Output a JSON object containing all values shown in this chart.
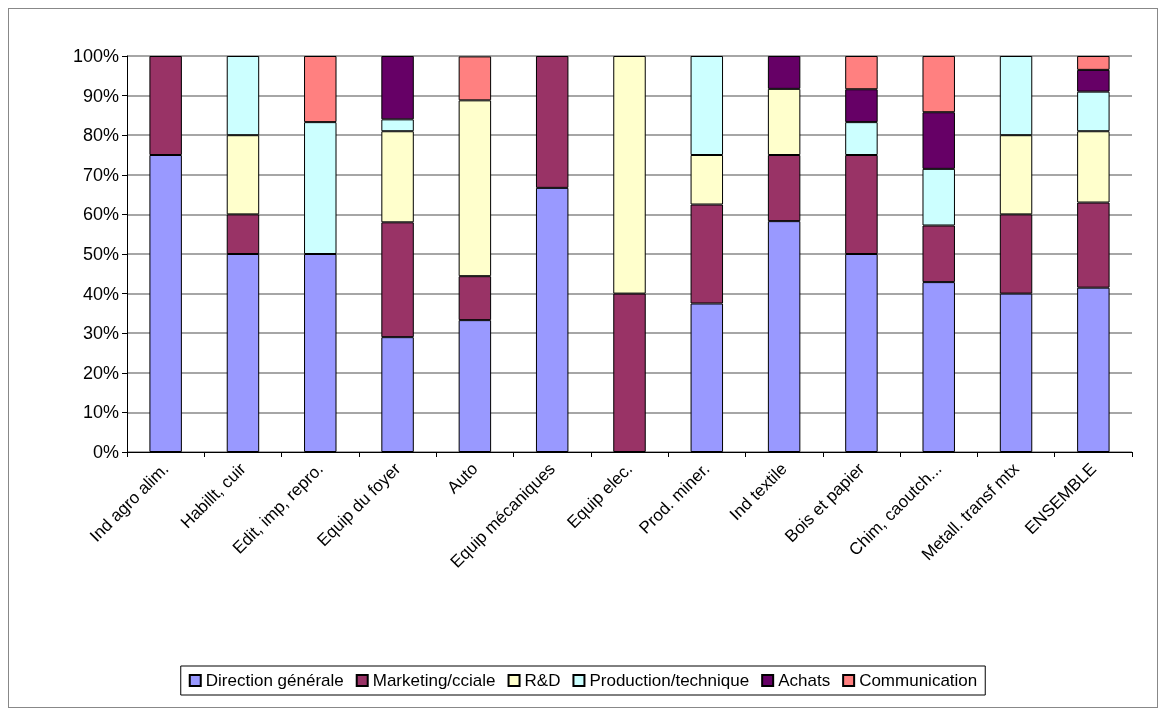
{
  "chart_data": {
    "type": "bar",
    "stacked": true,
    "categories": [
      "Ind agro alim.",
      "Habillt, cuir",
      "Edit, imp, repro.",
      "Equip du foyer",
      "Auto",
      "Equip mécaniques",
      "Equip elec.",
      "Prod. miner.",
      "Ind textile",
      "Bois et papier",
      "Chim, caoutch...",
      "Metall. transf mtx",
      "ENSEMBLE"
    ],
    "series": [
      {
        "name": "Direction générale",
        "color": "#9999ff",
        "values": [
          75,
          50,
          50,
          29,
          33.3,
          66.7,
          0,
          37.5,
          58.3,
          50,
          42.9,
          40,
          41.5
        ]
      },
      {
        "name": "Marketing/cciale",
        "color": "#993366",
        "values": [
          25,
          10,
          0,
          29,
          11.1,
          33.3,
          40,
          25,
          16.7,
          25,
          14.3,
          20,
          21.5
        ]
      },
      {
        "name": "R&D",
        "color": "#ffffcc",
        "values": [
          0,
          20,
          0,
          23,
          44.4,
          0,
          60,
          12.5,
          16.7,
          0,
          0,
          20,
          18
        ]
      },
      {
        "name": "Production/technique",
        "color": "#ccffff",
        "values": [
          0,
          20,
          33.3,
          3,
          0,
          0,
          0,
          25,
          0,
          8.3,
          14.3,
          20,
          10
        ]
      },
      {
        "name": "Achats",
        "color": "#660066",
        "values": [
          0,
          0,
          0,
          16,
          0,
          0,
          0,
          0,
          8.3,
          8.3,
          14.3,
          0,
          5.5
        ]
      },
      {
        "name": "Communication",
        "color": "#ff8080",
        "values": [
          0,
          0,
          16.7,
          0,
          11.1,
          0,
          0,
          0,
          0,
          8.4,
          14.2,
          0,
          3.5
        ]
      }
    ],
    "ylim": [
      0,
      100
    ],
    "yticks": [
      {
        "value": 0,
        "label": "0%"
      },
      {
        "value": 10,
        "label": "10%"
      },
      {
        "value": 20,
        "label": "20%"
      },
      {
        "value": 30,
        "label": "30%"
      },
      {
        "value": 40,
        "label": "40%"
      },
      {
        "value": 50,
        "label": "50%"
      },
      {
        "value": 60,
        "label": "60%"
      },
      {
        "value": 70,
        "label": "70%"
      },
      {
        "value": 80,
        "label": "80%"
      },
      {
        "value": 90,
        "label": "90%"
      },
      {
        "value": 100,
        "label": "100%"
      }
    ],
    "grid": "y",
    "legend": "bottom"
  }
}
